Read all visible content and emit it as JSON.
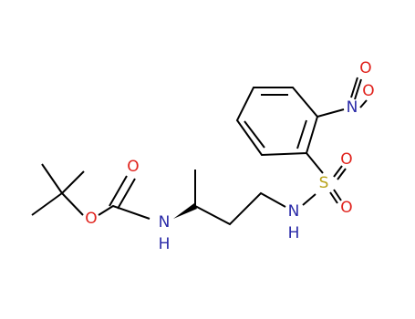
{
  "atoms": [
    {
      "label": "O"
    },
    {
      "label": "O"
    },
    {
      "label": "N"
    },
    {
      "label": "H"
    },
    {
      "label": "N"
    },
    {
      "label": "H"
    },
    {
      "label": "S"
    },
    {
      "label": "O"
    },
    {
      "label": "O"
    },
    {
      "label": "N"
    },
    {
      "label": "O"
    },
    {
      "label": "O"
    }
  ]
}
